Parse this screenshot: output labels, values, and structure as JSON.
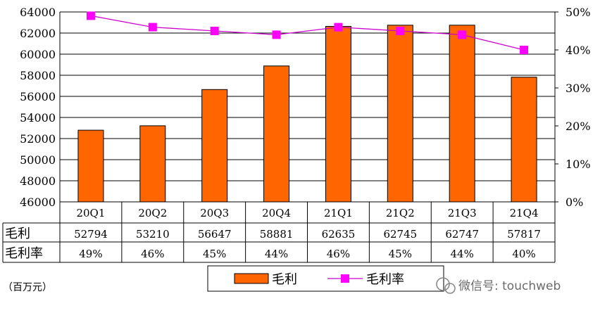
{
  "chart_data": {
    "type": "bar+line",
    "categories": [
      "20Q1",
      "20Q2",
      "20Q3",
      "20Q4",
      "21Q1",
      "21Q2",
      "21Q3",
      "21Q4"
    ],
    "series": [
      {
        "name": "毛利",
        "type": "bar",
        "axis": "left",
        "values": [
          52794,
          53210,
          56647,
          58881,
          62635,
          62745,
          62747,
          57817
        ],
        "color": "#FF6600"
      },
      {
        "name": "毛利率",
        "type": "line",
        "axis": "right",
        "values": [
          49,
          46,
          45,
          44,
          46,
          45,
          44,
          40
        ],
        "color": "#CC00CC",
        "marker_color": "#FF00FF"
      }
    ],
    "y_left": {
      "min": 46000,
      "max": 64000,
      "step": 2000,
      "ticks": [
        "46000",
        "48000",
        "50000",
        "52000",
        "54000",
        "56000",
        "58000",
        "60000",
        "62000",
        "64000"
      ]
    },
    "y_right": {
      "min": 0,
      "max": 50,
      "step": 10,
      "ticks": [
        "0%",
        "10%",
        "20%",
        "30%",
        "40%",
        "50%"
      ]
    },
    "table": {
      "rows": [
        {
          "label": "毛利",
          "cells": [
            "52794",
            "53210",
            "56647",
            "58881",
            "62635",
            "62745",
            "62747",
            "57817"
          ]
        },
        {
          "label": "毛利率",
          "cells": [
            "49%",
            "46%",
            "45%",
            "44%",
            "46%",
            "45%",
            "44%",
            "40%"
          ]
        }
      ]
    },
    "legend": {
      "placement": "bottom",
      "items": [
        "毛利",
        "毛利率"
      ]
    },
    "unit_note": "（百万元）",
    "grid": true
  },
  "watermark": {
    "text": "微信号: touchweb"
  }
}
